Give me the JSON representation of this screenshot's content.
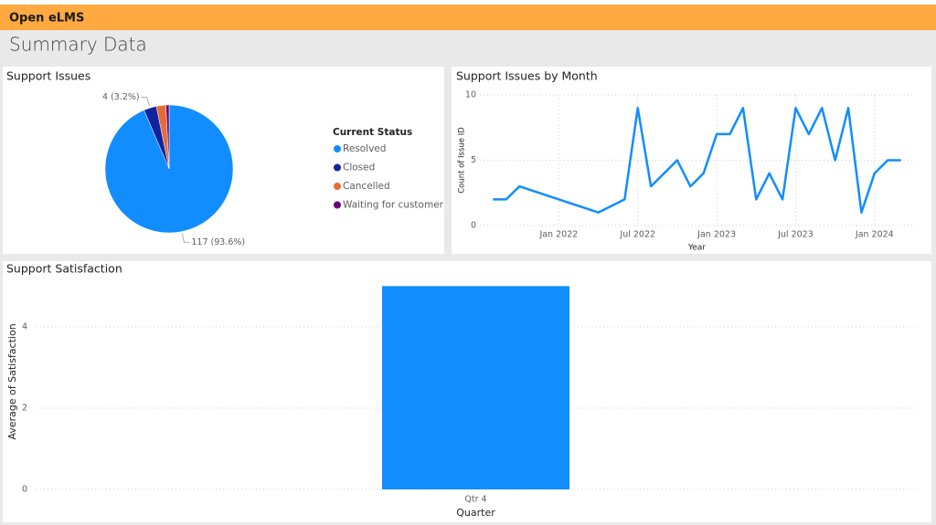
{
  "header": {
    "app": "Open eLMS",
    "page_title": "Summary Data"
  },
  "chart_data": [
    {
      "type": "pie",
      "title": "Support Issues",
      "legend_title": "Current Status",
      "categories": [
        "Resolved",
        "Closed",
        "Cancelled",
        "Waiting for customer"
      ],
      "values": [
        117,
        4,
        3,
        1
      ],
      "value_labels": [
        "117 (93.6%)",
        "4 (3.2%)",
        null,
        null
      ],
      "colors": [
        "#118dff",
        "#12239e",
        "#e66c37",
        "#6b007b"
      ]
    },
    {
      "type": "line",
      "title": "Support Issues by Month",
      "x_label": "Year",
      "y_label": "Count of Issue ID",
      "x": [
        "2021-08",
        "2021-09",
        "2021-10",
        "2022-04",
        "2022-06",
        "2022-07",
        "2022-08",
        "2022-10",
        "2022-11",
        "2022-12",
        "2023-01",
        "2023-02",
        "2023-03",
        "2023-04",
        "2023-05",
        "2023-06",
        "2023-07",
        "2023-08",
        "2023-09",
        "2023-10",
        "2023-11",
        "2023-12",
        "2024-01",
        "2024-02",
        "2024-03"
      ],
      "series": [
        {
          "name": "Count of Issue ID",
          "color": "#118dff",
          "values": [
            2,
            2,
            3,
            1,
            2,
            9,
            3,
            5,
            3,
            4,
            7,
            7,
            9,
            2,
            4,
            2,
            9,
            7,
            9,
            5,
            9,
            1,
            4,
            5,
            5
          ]
        }
      ],
      "xlim": [
        "2021-07",
        "2024-04"
      ],
      "xticks": [
        {
          "value": "2022-01",
          "label": "Jan 2022"
        },
        {
          "value": "2022-07",
          "label": "Jul 2022"
        },
        {
          "value": "2023-01",
          "label": "Jan 2023"
        },
        {
          "value": "2023-07",
          "label": "Jul 2023"
        },
        {
          "value": "2024-01",
          "label": "Jan 2024"
        }
      ],
      "ylim": [
        0,
        10
      ],
      "yticks": [
        0,
        5,
        10
      ],
      "grid": true
    },
    {
      "type": "bar",
      "title": "Support Satisfaction",
      "x_label": "Quarter",
      "y_label": "Average of Satisfaction",
      "categories": [
        "Qtr 4"
      ],
      "values": [
        5
      ],
      "color": "#118dff",
      "ylim": [
        0,
        5.3
      ],
      "yticks": [
        0,
        2,
        4
      ],
      "grid": true
    }
  ]
}
